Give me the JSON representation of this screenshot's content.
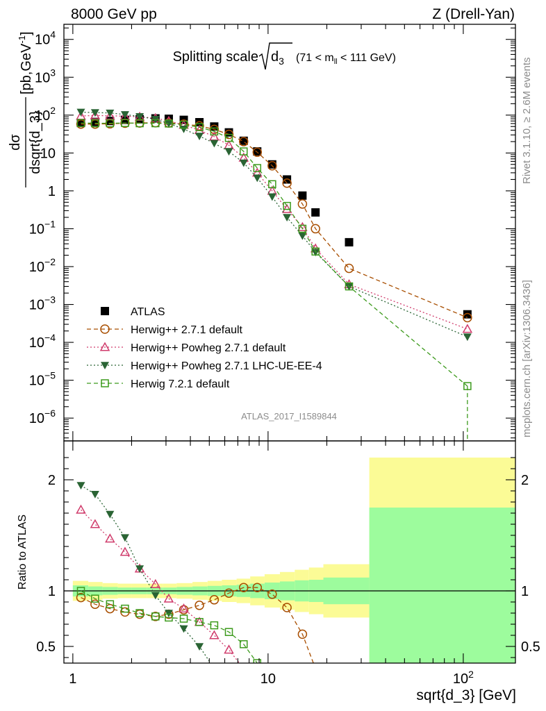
{
  "header": {
    "left": "8000 GeV pp",
    "right": "Z (Drell-Yan)"
  },
  "side_text": {
    "rivet": "Rivet 3.1.10, ≥ 2.6M events",
    "mcplots": "mcplots.cern.ch [arXiv:1306.3436]"
  },
  "analysis_id": "ATLAS_2017_I1589844",
  "colors": {
    "atlas": "#000000",
    "herwig271": "#a84e00",
    "powheg": "#d03c6c",
    "powheg_ue": "#2a6434",
    "herwig721": "#3c9a1c",
    "band_inner": "#9dfc9d",
    "band_outer": "#fbfb96"
  },
  "chart_data": [
    {
      "type": "scatter",
      "panel": "main",
      "title": "Splitting scale",
      "title_math": "√d",
      "title_sub": "3",
      "title_cut": "(71 < m",
      "title_cut_sub": "ll",
      "title_cut_end": " < 111 GeV)",
      "ylabel_num": "dσ",
      "ylabel_den": "dsqrt{d_3}",
      "ylabel_unit": "[pb,GeV",
      "ylabel_unit_sup": "-1",
      "ylabel_unit_end": "]",
      "xscale": "log",
      "yscale": "log",
      "xlim": [
        0.9,
        185
      ],
      "ylim": [
        2.5e-07,
        25000
      ],
      "y_ticks": [
        {
          "v": 1e-06,
          "b": "10",
          "e": "−6"
        },
        {
          "v": 1e-05,
          "b": "10",
          "e": "−5"
        },
        {
          "v": 0.0001,
          "b": "10",
          "e": "−4"
        },
        {
          "v": 0.001,
          "b": "10",
          "e": "−3"
        },
        {
          "v": 0.01,
          "b": "10",
          "e": "−2"
        },
        {
          "v": 0.1,
          "b": "10",
          "e": "−1"
        },
        {
          "v": 1,
          "b": "1",
          "e": ""
        },
        {
          "v": 10,
          "b": "10",
          "e": ""
        },
        {
          "v": 100,
          "b": "10",
          "e": "2"
        },
        {
          "v": 1000,
          "b": "10",
          "e": "3"
        },
        {
          "v": 10000,
          "b": "10",
          "e": "4"
        }
      ],
      "legend_position": "bottom-left",
      "series": [
        {
          "name": "ATLAS",
          "key": "atlas",
          "marker": "square-filled",
          "line": "none",
          "x": [
            1.1,
            1.3,
            1.55,
            1.85,
            2.2,
            2.65,
            3.1,
            3.7,
            4.45,
            5.3,
            6.3,
            7.5,
            8.8,
            10.5,
            12.5,
            15,
            17.5,
            26,
            105
          ],
          "y": [
            62,
            66,
            70,
            75,
            78,
            82,
            80,
            75,
            65,
            50,
            35,
            21,
            11,
            5,
            2,
            0.75,
            0.27,
            0.044,
            0.00055
          ]
        },
        {
          "name": "Herwig++ 2.7.1 default",
          "key": "herwig271",
          "marker": "circle-open",
          "line": "dashed",
          "x": [
            1.1,
            1.3,
            1.55,
            1.85,
            2.2,
            2.65,
            3.1,
            3.7,
            4.45,
            5.3,
            6.3,
            7.5,
            8.8,
            10.5,
            12.5,
            15,
            17.5,
            26,
            105
          ],
          "y": [
            58,
            58,
            59,
            61,
            62,
            63,
            62,
            58,
            52,
            42,
            31,
            20,
            10.5,
            4.6,
            1.6,
            0.45,
            0.1,
            0.009,
            0.00045
          ]
        },
        {
          "name": "Herwig++ Powheg 2.7.1 default",
          "key": "powheg",
          "marker": "triangle-open",
          "line": "dotted",
          "x": [
            1.1,
            1.3,
            1.55,
            1.85,
            2.2,
            2.65,
            3.1,
            3.7,
            4.45,
            5.3,
            6.3,
            7.5,
            8.8,
            10.5,
            12.5,
            15,
            17.5,
            26,
            105
          ],
          "y": [
            95,
            98,
            96,
            94,
            90,
            83,
            70,
            55,
            40,
            27,
            16,
            7.5,
            3,
            1,
            0.33,
            0.11,
            0.03,
            0.0034,
            0.000225
          ]
        },
        {
          "name": "Herwig++ Powheg 2.7.1 LHC-UE-EE-4",
          "key": "powheg_ue",
          "marker": "triangle-down-filled",
          "line": "dotted",
          "x": [
            1.1,
            1.3,
            1.55,
            1.85,
            2.2,
            2.65,
            3.1,
            3.7,
            4.45,
            5.3,
            6.3,
            7.5,
            8.8,
            10.5,
            12.5,
            15,
            17.5,
            26,
            105
          ],
          "y": [
            120,
            117,
            114,
            104,
            92,
            78,
            60,
            43,
            28,
            18,
            11,
            5.5,
            2.2,
            0.7,
            0.2,
            0.065,
            0.024,
            0.003,
            0.00014
          ]
        },
        {
          "name": "Herwig 7.2.1 default",
          "key": "herwig721",
          "marker": "square-open",
          "line": "dashed",
          "x": [
            1.1,
            1.3,
            1.55,
            1.85,
            2.2,
            2.65,
            3.1,
            3.7,
            4.45,
            5.3,
            6.3,
            7.5,
            8.8,
            10.5,
            12.5,
            15,
            17.5,
            26,
            105
          ],
          "y": [
            62,
            61,
            61,
            62,
            61,
            61,
            60,
            56,
            48,
            37,
            25,
            11,
            4,
            1.5,
            0.4,
            0.1,
            0.025,
            0.003,
            7e-06
          ]
        }
      ]
    },
    {
      "type": "scatter",
      "panel": "ratio",
      "ylabel": "Ratio to ATLAS",
      "xlabel": "sqrt{d_3} [GeV]",
      "xscale": "log",
      "xlim": [
        0.9,
        185
      ],
      "ylim": [
        0.35,
        2.35
      ],
      "x_ticks": [
        {
          "v": 1,
          "label": "1"
        },
        {
          "v": 10,
          "label": "10"
        },
        {
          "v": 100,
          "label": "10",
          "sup": "2"
        }
      ],
      "y_ticks": [
        {
          "v": 0.5,
          "label": "0.5"
        },
        {
          "v": 1,
          "label": "1"
        },
        {
          "v": 2,
          "label": "2"
        }
      ],
      "bands": {
        "edges": [
          1,
          1.2,
          1.42,
          1.7,
          2,
          2.4,
          2.9,
          3.4,
          4.1,
          4.9,
          5.8,
          6.9,
          8.1,
          9.6,
          11.5,
          13.7,
          16.2,
          19.2,
          33,
          185
        ],
        "inner": [
          0.05,
          0.04,
          0.035,
          0.03,
          0.03,
          0.03,
          0.03,
          0.035,
          0.04,
          0.045,
          0.05,
          0.055,
          0.065,
          0.075,
          0.085,
          0.095,
          0.1,
          0.12,
          0.75
        ],
        "outer": [
          0.09,
          0.08,
          0.07,
          0.065,
          0.065,
          0.065,
          0.065,
          0.07,
          0.08,
          0.09,
          0.1,
          0.11,
          0.13,
          0.15,
          0.17,
          0.19,
          0.21,
          0.24,
          1.2
        ]
      },
      "series": [
        {
          "name": "Herwig++ 2.7.1 default",
          "key": "herwig271",
          "marker": "circle-open",
          "line": "dashed",
          "x": [
            1.1,
            1.3,
            1.55,
            1.85,
            2.2,
            2.65,
            3.1,
            3.7,
            4.45,
            5.3,
            6.3,
            7.5,
            8.8,
            10.5,
            12.5,
            15,
            17.5
          ],
          "y": [
            0.94,
            0.88,
            0.84,
            0.81,
            0.79,
            0.77,
            0.79,
            0.83,
            0.87,
            0.92,
            0.98,
            1.03,
            1.03,
            0.97,
            0.85,
            0.61,
            0.3
          ]
        },
        {
          "name": "Herwig++ Powheg 2.7.1 default",
          "key": "powheg",
          "marker": "triangle-open",
          "line": "dotted",
          "x": [
            1.1,
            1.3,
            1.55,
            1.85,
            2.2,
            2.65,
            3.1,
            3.7,
            4.45,
            5.3,
            6.3,
            7.5
          ],
          "y": [
            1.73,
            1.6,
            1.47,
            1.35,
            1.2,
            1.06,
            0.93,
            0.84,
            0.72,
            0.6,
            0.47,
            0.3
          ]
        },
        {
          "name": "Herwig++ Powheg 2.7.1 LHC-UE-EE-4",
          "key": "powheg_ue",
          "marker": "triangle-down-filled",
          "line": "dotted",
          "x": [
            1.1,
            1.3,
            1.55,
            1.85,
            2.2,
            2.65,
            3.1,
            3.7,
            4.45,
            5.3
          ],
          "y": [
            1.95,
            1.87,
            1.69,
            1.48,
            1.2,
            0.96,
            0.8,
            0.66,
            0.5,
            0.3
          ]
        },
        {
          "name": "Herwig 7.2.1 default",
          "key": "herwig721",
          "marker": "square-open",
          "line": "dashed",
          "x": [
            1.1,
            1.3,
            1.55,
            1.85,
            2.2,
            2.65,
            3.1,
            3.7,
            4.45,
            5.3,
            6.3,
            7.5,
            8.8,
            9.6
          ],
          "y": [
            1.0,
            0.93,
            0.88,
            0.84,
            0.8,
            0.77,
            0.76,
            0.75,
            0.72,
            0.69,
            0.63,
            0.52,
            0.35,
            0.3
          ]
        }
      ]
    }
  ]
}
